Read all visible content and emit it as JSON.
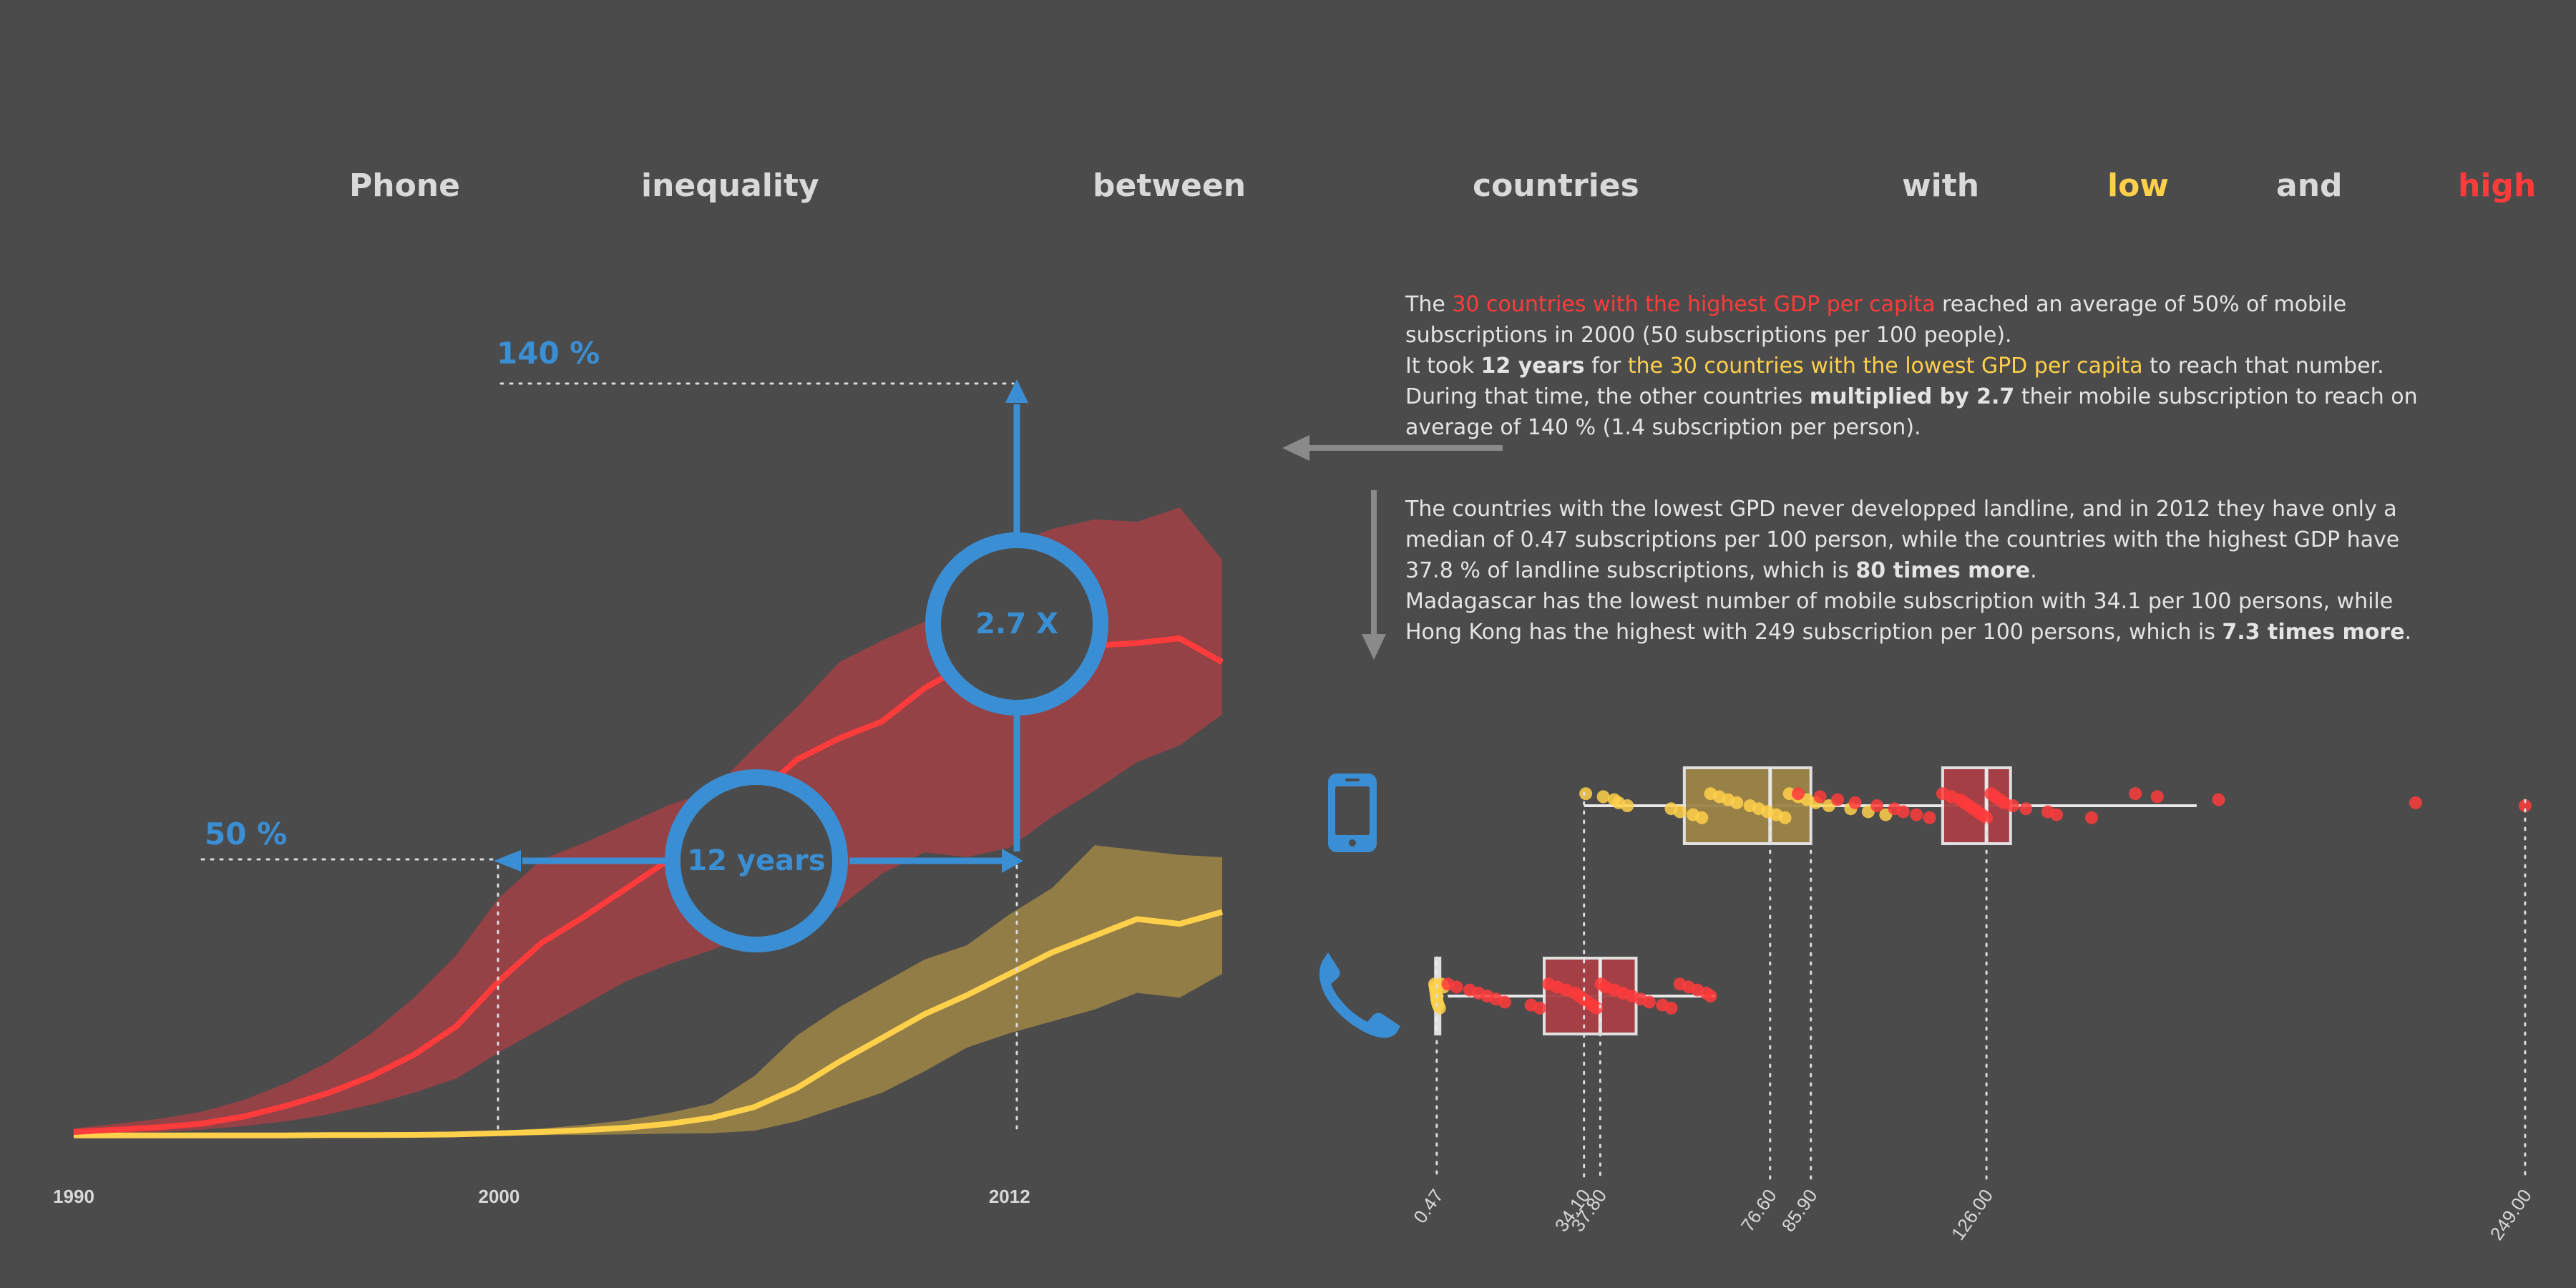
{
  "colors": {
    "background": "#4b4b4b",
    "high": "#ff3b3b",
    "low": "#ffd04a",
    "high_band": "#a94045",
    "low_band": "#9c8447",
    "accent_blue": "#3a8fd4",
    "text": "#e4e4e4",
    "title": "#d9d9d9"
  },
  "title": {
    "words": [
      {
        "text": "Phone",
        "color": "#d9d9d9"
      },
      {
        "text": "inequality",
        "color": "#d9d9d9"
      },
      {
        "text": "between",
        "color": "#d9d9d9"
      },
      {
        "text": "countries",
        "color": "#d9d9d9"
      },
      {
        "text": "with",
        "color": "#d9d9d9"
      },
      {
        "text": "low",
        "color": "#ffd04a"
      },
      {
        "text": "and",
        "color": "#d9d9d9"
      },
      {
        "text": "high",
        "color": "#ff3b3b"
      }
    ]
  },
  "paragraph1": {
    "l1_a": "The ",
    "l1_b": "30 countries with the highest GDP per capita",
    "l1_c": " reached an average of 50% of mobile subscriptions in 2000 (50 subscriptions per 100 people).",
    "l2_a": "It took ",
    "l2_b": "12 years",
    "l2_c": " for ",
    "l2_d": "the 30 countries with the lowest GPD per capita",
    "l2_e": " to reach that number.",
    "l3_a": "During that time, the other countries ",
    "l3_b": "multiplied by 2.7",
    "l3_c": " their mobile subscription to reach on average of 140 % (1.4 subscription per person)."
  },
  "paragraph2": {
    "l1_a": "The countries with the lowest GPD never developped landline, and in 2012 they have only a median of 0.47 subscriptions per 100 person, while the countries with the highest GDP have 37.8 % of landline subscriptions, which is ",
    "l1_b": "80 times more",
    "l1_c": ".",
    "l2_a": "Madagascar has the lowest number of mobile subscription with 34.1 per 100 persons, while Hong Kong has the highest with 249 subscription per 100 persons, which is ",
    "l2_b": "7.3 times more",
    "l2_c": "."
  },
  "annotations": {
    "pct_140": "140 %",
    "pct_50": "50 %",
    "multiplier": "2.7 X",
    "years": "12 years"
  },
  "chart_data": [
    {
      "type": "area",
      "x": [
        1990,
        1991,
        1992,
        1993,
        1994,
        1995,
        1996,
        1997,
        1998,
        1999,
        2000,
        2001,
        2002,
        2003,
        2004,
        2005,
        2006,
        2007,
        2008,
        2009,
        2010,
        2011,
        2012,
        2013,
        2014,
        2015,
        2016,
        2017
      ],
      "xlim": [
        1990,
        2017
      ],
      "ylim": [
        0,
        200
      ],
      "x_ticks": [
        "1990",
        "2000",
        "2012"
      ],
      "series": [
        {
          "median": [
            1.5,
            2.5,
            3.5,
            5,
            8,
            12.5,
            18,
            25,
            34,
            46,
            65,
            81,
            92,
            104,
            116,
            128,
            142,
            158,
            167,
            174,
            188,
            198,
            202,
            206,
            206,
            207,
            209,
            199
          ],
          "upper": [
            3,
            5,
            7,
            10,
            15,
            22,
            31,
            43,
            58,
            76,
            100,
            116,
            123,
            131,
            139,
            145,
            163,
            180,
            199,
            208,
            216,
            237,
            248,
            255,
            259,
            258,
            264,
            242
          ],
          "lower": [
            0.5,
            1,
            1.5,
            2.5,
            4,
            6,
            9,
            13,
            18,
            24,
            35,
            45,
            55,
            65,
            72,
            78,
            85,
            90,
            96,
            110,
            119,
            117,
            121,
            134,
            145,
            157,
            164,
            177
          ]
        },
        {
          "median": [
            0.1,
            0.1,
            0.1,
            0.1,
            0.1,
            0.1,
            0.2,
            0.2,
            0.3,
            0.5,
            1,
            1.5,
            2.3,
            3.3,
            5,
            7.5,
            12,
            20,
            31,
            41,
            51,
            59,
            68,
            77,
            84,
            91,
            89,
            94
          ],
          "upper": [
            0.3,
            0.3,
            0.3,
            0.3,
            0.4,
            0.5,
            0.6,
            0.8,
            1,
            1.5,
            2,
            3,
            4.5,
            6.5,
            9.5,
            13.5,
            25,
            42,
            54,
            64,
            74,
            80,
            93,
            104,
            122,
            120,
            118,
            117
          ],
          "lower": [
            0,
            0,
            0,
            0,
            0,
            0,
            0,
            0,
            0,
            0,
            0.1,
            0.2,
            0.3,
            0.5,
            0.8,
            1,
            2,
            6,
            12,
            18,
            27,
            37,
            43,
            48,
            53,
            60,
            58,
            68
          ]
        }
      ]
    },
    {
      "type": "scatter",
      "xlim": [
        0,
        250
      ],
      "x_ticks": [
        "0.47",
        "34.10",
        "37.80",
        "76.60",
        "85.90",
        "126.00",
        "249.00"
      ],
      "series": [
        {
          "box": {
            "min": 34.1,
            "q1": 57,
            "median": 76.6,
            "q3": 85.9,
            "max": 105
          },
          "points": [
            34.5,
            38.5,
            41,
            42,
            44,
            54,
            56,
            59,
            61,
            63,
            65,
            67,
            69,
            72,
            74,
            76,
            78,
            80,
            81,
            83,
            85,
            87,
            90,
            95,
            99,
            103
          ]
        },
        {
          "box": {
            "min": 105,
            "q1": 116,
            "median": 126,
            "q3": 131.5,
            "max": 174
          },
          "points": [
            83,
            88,
            92,
            96,
            101,
            105,
            107,
            110,
            113,
            116,
            118,
            120,
            121,
            122,
            123,
            124,
            125,
            126,
            127,
            128,
            129,
            130,
            132,
            135,
            140,
            142,
            150,
            160,
            165,
            179,
            224,
            249
          ]
        },
        {
          "box": {
            "min": 0,
            "q1": 0.2,
            "median": 0.47,
            "q3": 0.9,
            "max": 2
          },
          "points": [
            0,
            0.1,
            0.2,
            0.3,
            0.4,
            0.47,
            0.6,
            0.8,
            1.1,
            1.5,
            2
          ]
        },
        {
          "box": {
            "min": 3,
            "q1": 25,
            "median": 37.8,
            "q3": 46,
            "max": 64
          },
          "points": [
            3,
            5,
            8,
            10,
            12,
            14,
            16,
            22,
            24,
            26,
            28,
            30,
            32,
            33,
            34,
            35,
            36,
            37,
            38,
            39,
            41,
            43,
            45,
            47,
            49,
            52,
            54,
            56,
            58,
            60,
            62,
            63
          ]
        }
      ]
    }
  ]
}
